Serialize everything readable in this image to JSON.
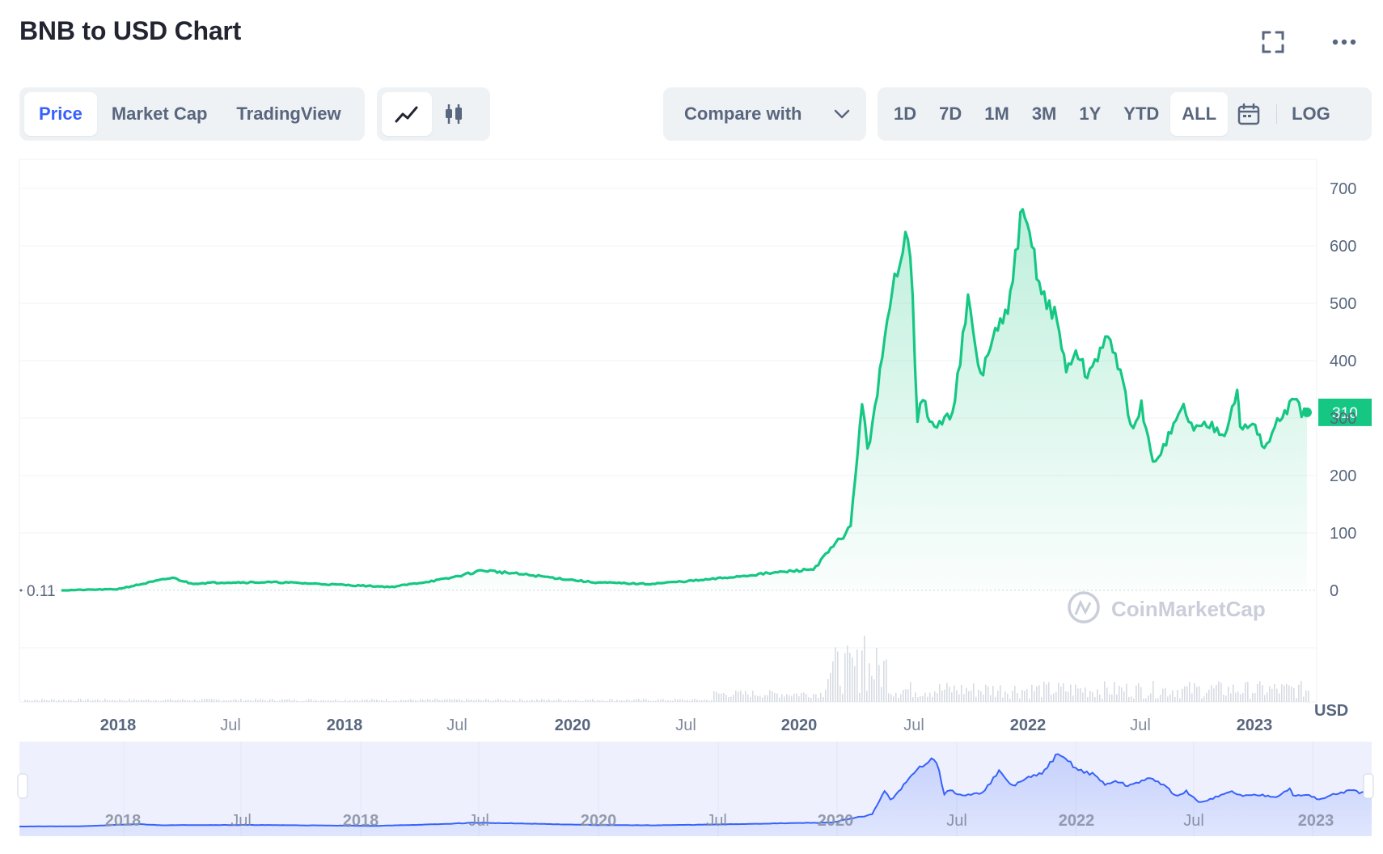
{
  "header": {
    "title": "BNB to USD Chart"
  },
  "icons": {
    "fullscreen": "fullscreen-icon",
    "more": "more-icon",
    "line": "line-chart-icon",
    "candle": "candlestick-icon",
    "calendar": "calendar-icon",
    "chevron": "chevron-down-icon"
  },
  "toolbar": {
    "view_tabs": [
      "Price",
      "Market Cap",
      "TradingView"
    ],
    "active_view": "Price",
    "compare_label": "Compare with",
    "ranges": [
      "1D",
      "7D",
      "1M",
      "3M",
      "1Y",
      "YTD",
      "ALL"
    ],
    "active_range": "ALL",
    "log_label": "LOG"
  },
  "colors": {
    "line": "#16c784",
    "navigator_line": "#3861fb",
    "accent": "#3861fb",
    "badge": "#16c784"
  },
  "watermark": "CoinMarketCap",
  "chart_data": {
    "type": "line",
    "x_tick_labels": [
      "2018",
      "Jul",
      "2018",
      "Jul",
      "2020",
      "Jul",
      "2020",
      "Jul",
      "2022",
      "Jul",
      "2023"
    ],
    "y_tick_labels": [
      "700",
      "600",
      "500",
      "400",
      "300",
      "200",
      "100",
      "0"
    ],
    "ylim": [
      0,
      700
    ],
    "y_unit": "USD",
    "start_value_label": "0.11",
    "current_value_label": "310",
    "navigator_tick_labels": [
      "2018",
      "Jul",
      "2018",
      "Jul",
      "2020",
      "Jul",
      "2020",
      "Jul",
      "2022",
      "Jul",
      "2023"
    ],
    "series": [
      {
        "x": [
          "2017-07",
          "2017-10",
          "2018-01",
          "2018-02",
          "2018-04",
          "2018-07",
          "2018-10",
          "2019-01",
          "2019-04",
          "2019-06",
          "2019-09",
          "2019-12",
          "2020-03",
          "2020-06",
          "2020-09",
          "2020-12",
          "2021-02",
          "2021-02-20",
          "2021-03",
          "2021-04-15",
          "2021-05-03",
          "2021-05-11",
          "2021-05-23",
          "2021-06",
          "2021-06-20",
          "2021-07-20",
          "2021-08-15",
          "2021-09-05",
          "2021-09-25",
          "2021-10-20",
          "2021-11-10",
          "2021-11-25",
          "2021-12-15",
          "2022-01-10",
          "2022-01-25",
          "2022-02-10",
          "2022-03-01",
          "2022-03-31",
          "2022-04-25",
          "2022-05-12",
          "2022-05-30",
          "2022-06-18",
          "2022-07-10",
          "2022-08-08",
          "2022-08-25",
          "2022-09-20",
          "2022-10-15",
          "2022-11-05",
          "2022-11-10",
          "2022-12-05",
          "2022-12-20",
          "2023-01-15",
          "2023-02-08",
          "2023-02-20",
          "2023-03-01"
        ],
        "values": [
          0.11,
          2,
          22,
          12,
          14,
          14,
          10,
          6,
          20,
          35,
          25,
          14,
          11,
          18,
          28,
          37,
          110,
          330,
          240,
          540,
          630,
          600,
          300,
          330,
          280,
          310,
          500,
          370,
          440,
          480,
          650,
          620,
          520,
          470,
          380,
          420,
          370,
          440,
          390,
          280,
          320,
          220,
          260,
          320,
          280,
          290,
          275,
          350,
          280,
          290,
          245,
          300,
          330,
          310,
          310
        ]
      }
    ]
  }
}
